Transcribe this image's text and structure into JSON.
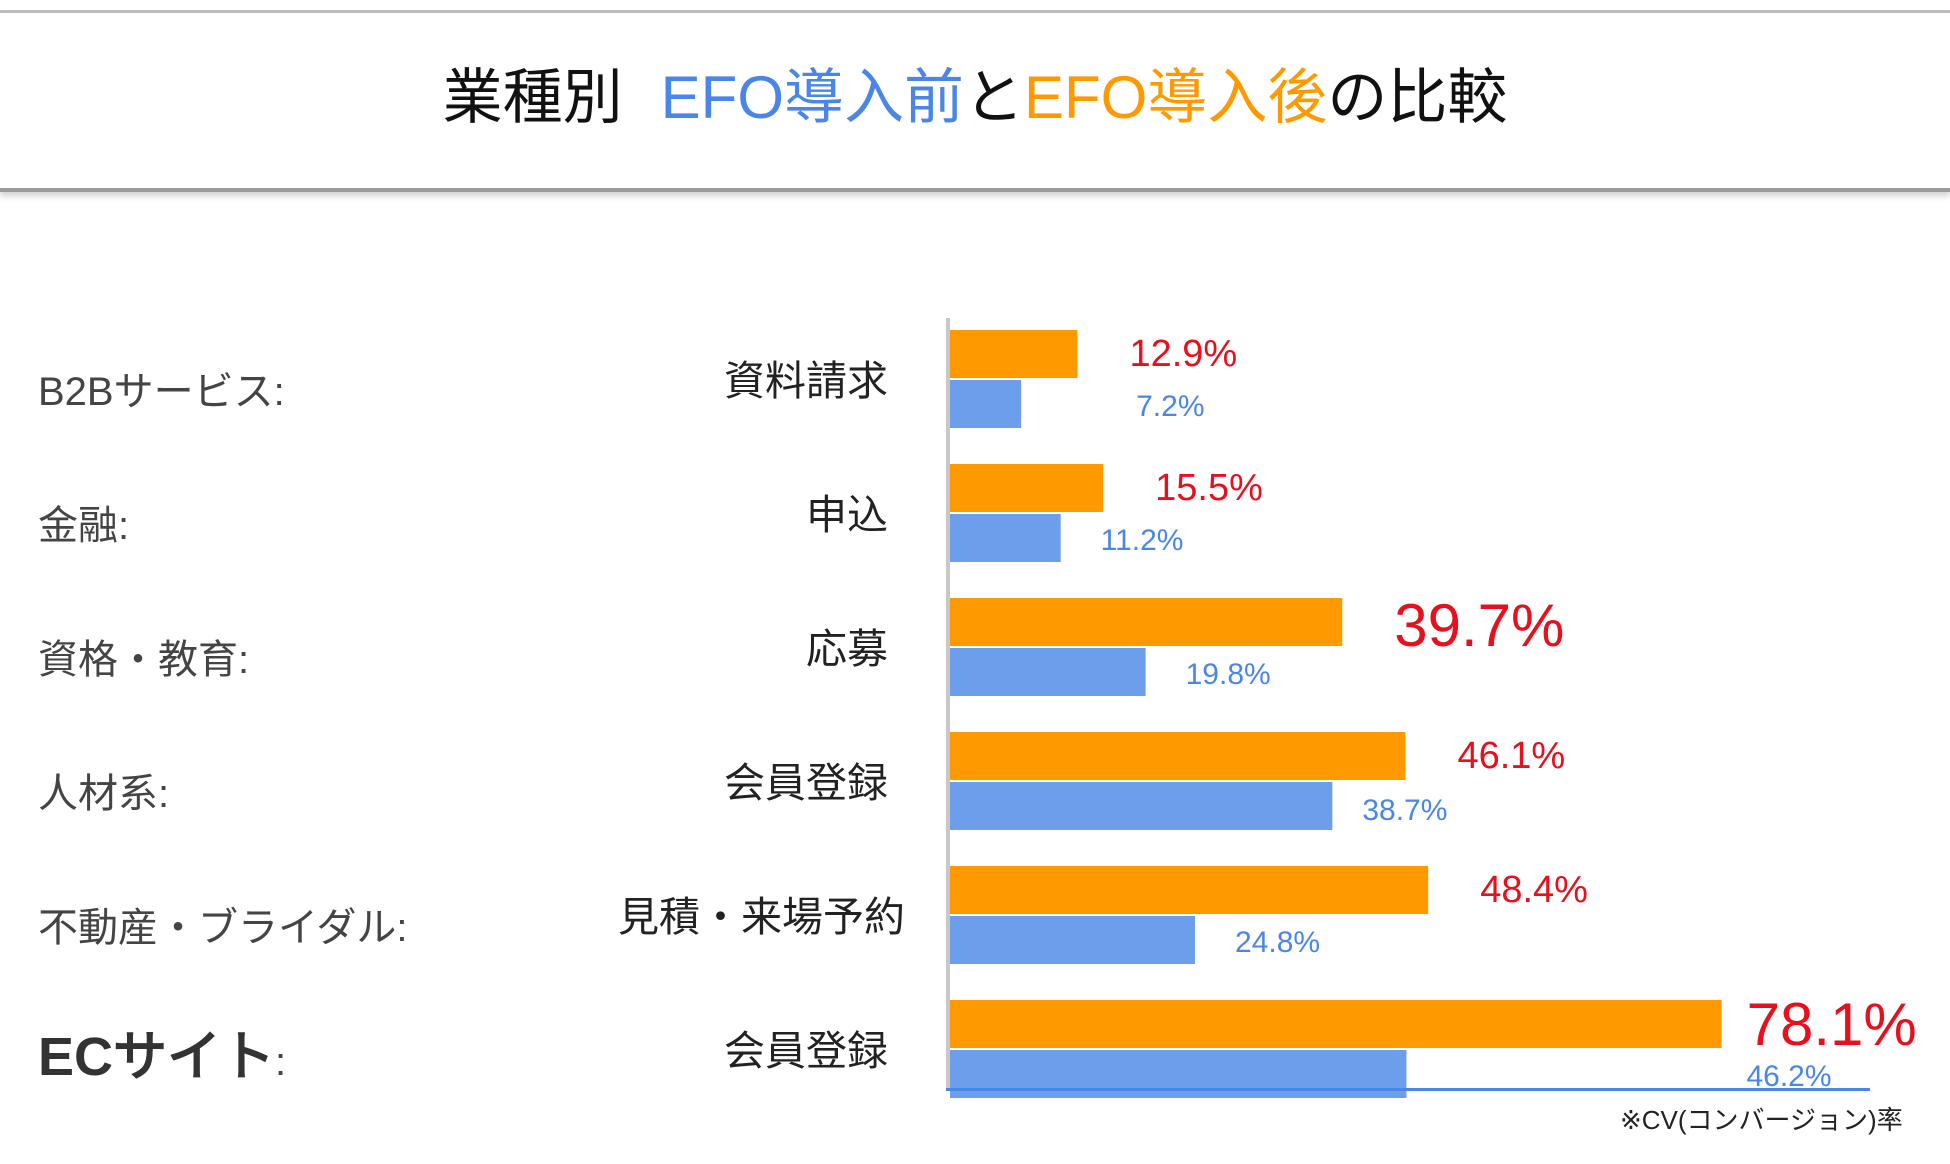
{
  "title": {
    "prefix": "業種別",
    "before": "EFO導入前",
    "connector": "と",
    "after": "EFO導入後",
    "suffix": "の比較"
  },
  "footnote": "※CV(コンバージョン)率",
  "colors": {
    "after_bar": "#ff9900",
    "before_bar": "#6d9eeb",
    "after_label": "#e8101c",
    "before_label": "#4a86e8",
    "axis": "#4a86e8"
  },
  "chart_data": {
    "type": "bar",
    "orientation": "horizontal",
    "categories": [
      {
        "industry": "B2Bサービス",
        "action": "資料請求"
      },
      {
        "industry": "金融",
        "action": "申込"
      },
      {
        "industry": "資格・教育",
        "action": "応募"
      },
      {
        "industry": "人材系",
        "action": "会員登録"
      },
      {
        "industry": "不動産・ブライダル",
        "action": "見積・来場予約"
      },
      {
        "industry": "ECサイト",
        "action": "会員登録"
      }
    ],
    "series": [
      {
        "values": [
          12.9,
          15.5,
          39.7,
          46.1,
          48.4,
          78.1
        ],
        "labels": [
          "12.9%",
          "15.5%",
          "39.7%",
          "46.1%",
          "48.4%",
          "78.1%"
        ]
      },
      {
        "values": [
          7.2,
          11.2,
          19.8,
          38.7,
          24.8,
          46.2
        ],
        "labels": [
          "7.2%",
          "11.2%",
          "19.8%",
          "38.7%",
          "24.8%",
          "46.2%"
        ]
      }
    ],
    "xlim": [
      0,
      100
    ],
    "unit": "%",
    "highlighted": [
      2,
      5
    ]
  }
}
